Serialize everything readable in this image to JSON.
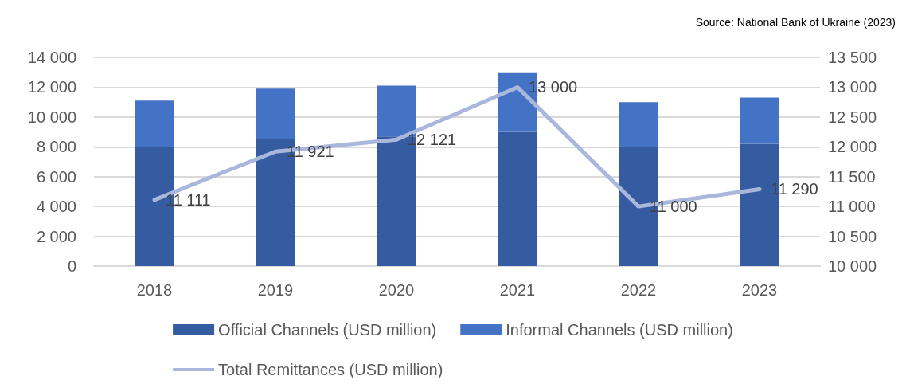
{
  "chart_data": {
    "type": "bar",
    "stacked": true,
    "categories": [
      "2018",
      "2019",
      "2020",
      "2021",
      "2022",
      "2023"
    ],
    "series": [
      {
        "name": "Official Channels (USD million)",
        "color": "#355ca0",
        "values": [
          8000,
          8500,
          8700,
          9000,
          8000,
          8200
        ]
      },
      {
        "name": "Informal Channels (USD million)",
        "color": "#4472c4",
        "values": [
          3100,
          3400,
          3400,
          4000,
          3000,
          3100
        ]
      },
      {
        "name": "Total Remittances (USD million)",
        "type": "line",
        "axis": "y2",
        "color": "#a9b7dc",
        "marker": "none",
        "values": [
          11111,
          11921,
          12121,
          13000,
          11000,
          11290
        ],
        "value_labels": [
          "11 111",
          "11 921",
          "12 121",
          "13 000",
          "11 000",
          "11 290"
        ]
      }
    ],
    "ylim": [
      0,
      14000
    ],
    "yticks": [
      {
        "value": 0,
        "label": "0"
      },
      {
        "value": 2000,
        "label": "2 000"
      },
      {
        "value": 4000,
        "label": "4 000"
      },
      {
        "value": 6000,
        "label": "6 000"
      },
      {
        "value": 8000,
        "label": "8 000"
      },
      {
        "value": 10000,
        "label": "10 000"
      },
      {
        "value": 12000,
        "label": "12 000"
      },
      {
        "value": 14000,
        "label": "14 000"
      }
    ],
    "y2lim": [
      10000,
      13500
    ],
    "y2ticks": [
      {
        "value": 10000,
        "label": "10 000"
      },
      {
        "value": 10500,
        "label": "10 500"
      },
      {
        "value": 11000,
        "label": "11 000"
      },
      {
        "value": 11500,
        "label": "11 500"
      },
      {
        "value": 12000,
        "label": "12 000"
      },
      {
        "value": 12500,
        "label": "12 500"
      },
      {
        "value": 13000,
        "label": "13 000"
      },
      {
        "value": 13500,
        "label": "13 500"
      }
    ],
    "grid": "y",
    "legend": "bottom",
    "annotations": [
      "Source: National Bank of Ukraine (2023)"
    ]
  }
}
